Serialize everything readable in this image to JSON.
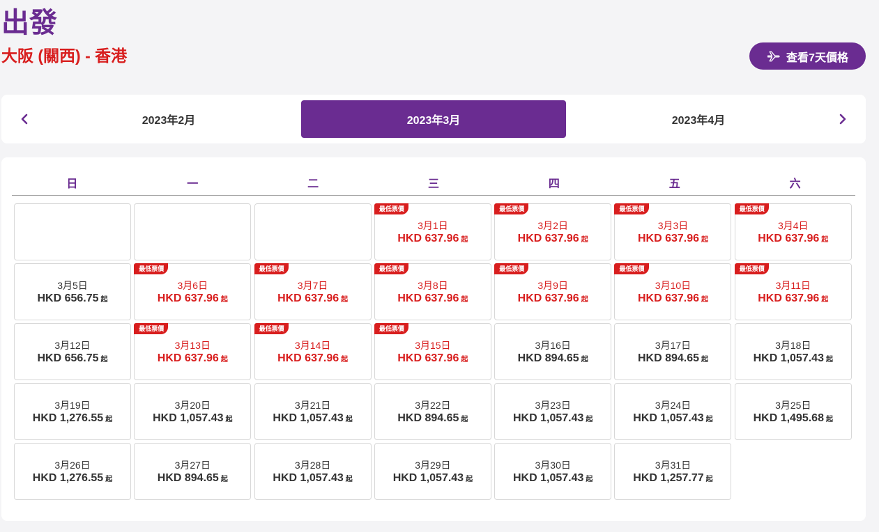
{
  "header": {
    "title": "出發",
    "route": "大阪 (關西) - 香港",
    "week_button_label": "查看7天價格"
  },
  "month_nav": {
    "prev": "2023年2月",
    "current": "2023年3月",
    "next": "2023年4月"
  },
  "weekdays": [
    "日",
    "一",
    "二",
    "三",
    "四",
    "五",
    "六"
  ],
  "badge_label": "最低票價",
  "price_suffix": "起",
  "colors": {
    "brand": "#6a2c91",
    "lowest": "#d81e1e"
  },
  "days": [
    {
      "date": "3月1日",
      "price": "HKD 637.96",
      "lowest": true
    },
    {
      "date": "3月2日",
      "price": "HKD 637.96",
      "lowest": true
    },
    {
      "date": "3月3日",
      "price": "HKD 637.96",
      "lowest": true
    },
    {
      "date": "3月4日",
      "price": "HKD 637.96",
      "lowest": true
    },
    {
      "date": "3月5日",
      "price": "HKD 656.75",
      "lowest": false
    },
    {
      "date": "3月6日",
      "price": "HKD 637.96",
      "lowest": true
    },
    {
      "date": "3月7日",
      "price": "HKD 637.96",
      "lowest": true
    },
    {
      "date": "3月8日",
      "price": "HKD 637.96",
      "lowest": true
    },
    {
      "date": "3月9日",
      "price": "HKD 637.96",
      "lowest": true
    },
    {
      "date": "3月10日",
      "price": "HKD 637.96",
      "lowest": true
    },
    {
      "date": "3月11日",
      "price": "HKD 637.96",
      "lowest": true
    },
    {
      "date": "3月12日",
      "price": "HKD 656.75",
      "lowest": false
    },
    {
      "date": "3月13日",
      "price": "HKD 637.96",
      "lowest": true
    },
    {
      "date": "3月14日",
      "price": "HKD 637.96",
      "lowest": true
    },
    {
      "date": "3月15日",
      "price": "HKD 637.96",
      "lowest": true
    },
    {
      "date": "3月16日",
      "price": "HKD 894.65",
      "lowest": false
    },
    {
      "date": "3月17日",
      "price": "HKD 894.65",
      "lowest": false
    },
    {
      "date": "3月18日",
      "price": "HKD 1,057.43",
      "lowest": false
    },
    {
      "date": "3月19日",
      "price": "HKD 1,276.55",
      "lowest": false
    },
    {
      "date": "3月20日",
      "price": "HKD 1,057.43",
      "lowest": false
    },
    {
      "date": "3月21日",
      "price": "HKD 1,057.43",
      "lowest": false
    },
    {
      "date": "3月22日",
      "price": "HKD 894.65",
      "lowest": false
    },
    {
      "date": "3月23日",
      "price": "HKD 1,057.43",
      "lowest": false
    },
    {
      "date": "3月24日",
      "price": "HKD 1,057.43",
      "lowest": false
    },
    {
      "date": "3月25日",
      "price": "HKD 1,495.68",
      "lowest": false
    },
    {
      "date": "3月26日",
      "price": "HKD 1,276.55",
      "lowest": false
    },
    {
      "date": "3月27日",
      "price": "HKD 894.65",
      "lowest": false
    },
    {
      "date": "3月28日",
      "price": "HKD 1,057.43",
      "lowest": false
    },
    {
      "date": "3月29日",
      "price": "HKD 1,057.43",
      "lowest": false
    },
    {
      "date": "3月30日",
      "price": "HKD 1,057.43",
      "lowest": false
    },
    {
      "date": "3月31日",
      "price": "HKD 1,257.77",
      "lowest": false
    }
  ],
  "leading_empty_days": 3
}
